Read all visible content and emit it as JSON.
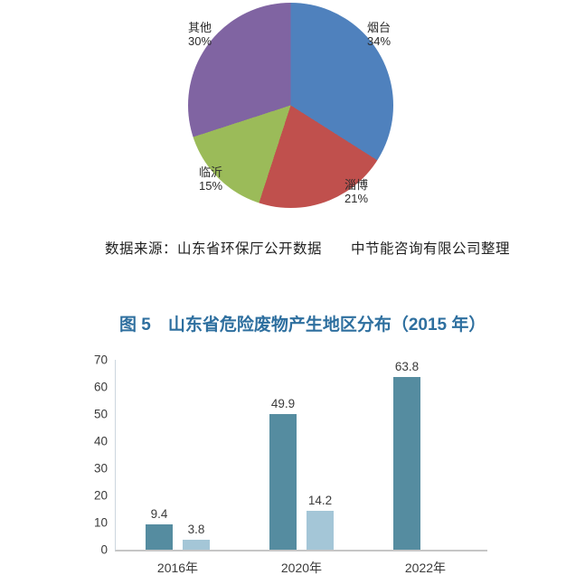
{
  "source_note": "数据来源：山东省环保厅公开数据　　中节能咨询有限公司整理",
  "figure_title": "图 5　山东省危险废物产生地区分布（2015 年）",
  "chart_data": [
    {
      "type": "pie",
      "title": "",
      "slices": [
        {
          "label": "烟台",
          "pct": "34%",
          "value": 34,
          "color": "#4f81bd"
        },
        {
          "label": "淄博",
          "pct": "21%",
          "value": 21,
          "color": "#c0504d"
        },
        {
          "label": "临沂",
          "pct": "15%",
          "value": 15,
          "color": "#9bbb59"
        },
        {
          "label": "其他",
          "pct": "30%",
          "value": 30,
          "color": "#8064a2"
        }
      ],
      "start_angle": "top",
      "direction": "clockwise",
      "legend": "none"
    },
    {
      "type": "bar",
      "categories": [
        "2016年",
        "2020年",
        "2022年"
      ],
      "series": [
        {
          "color": "#558ca0",
          "values": [
            9.4,
            49.9,
            63.8
          ]
        },
        {
          "color": "#a4c6d7",
          "values": [
            3.8,
            14.2,
            null
          ]
        }
      ],
      "ylim": [
        0,
        70
      ],
      "yticks": [
        0,
        10,
        20,
        30,
        40,
        50,
        60,
        70
      ],
      "grid": false,
      "legend": "none",
      "value_labels": true
    }
  ]
}
